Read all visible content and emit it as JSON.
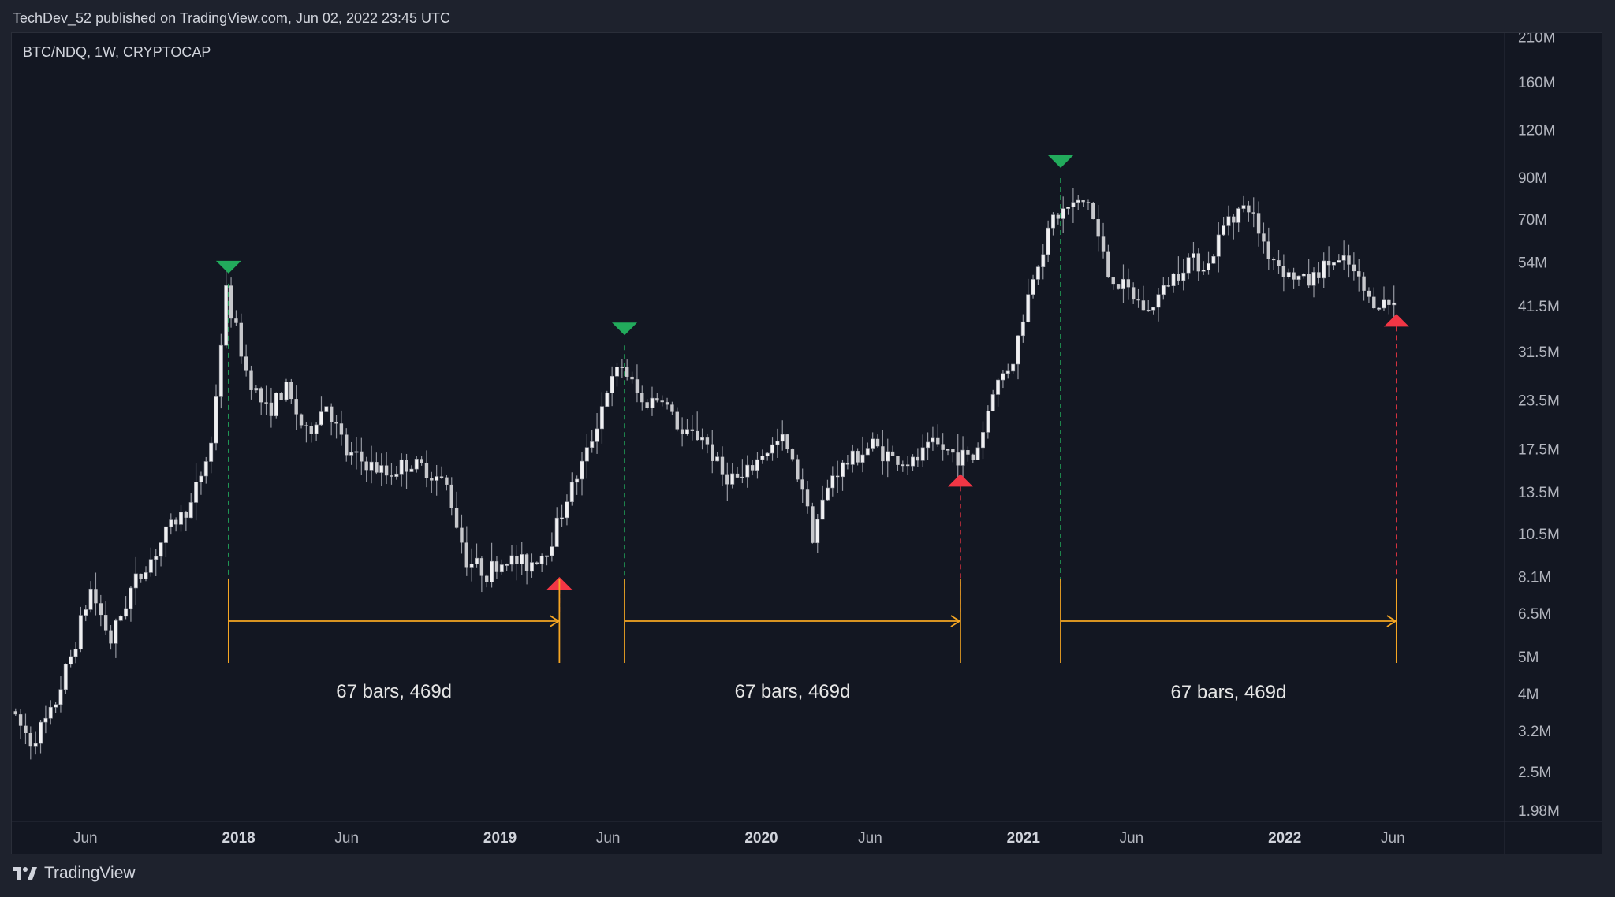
{
  "header": {
    "published_line": "TechDev_52 published on TradingView.com, Jun 02, 2022 23:45 UTC"
  },
  "footer": {
    "brand": "TradingView"
  },
  "colors": {
    "background": "#131722",
    "frame": "#1e222d",
    "candle": "#c7c8cc",
    "wick": "#9598a1",
    "peak_marker": "#22ab5c",
    "bottom_marker": "#f23645",
    "range_tool": "#f5a623",
    "text": "#d1d4dc",
    "axis_text": "#b2b5be"
  },
  "chart_data": {
    "type": "line",
    "symbol_label": "BTC/NDQ, 1W, CRYPTOCAP",
    "interval": "1W",
    "scale": "log",
    "x_start": "2017-02-20",
    "x_end": "2022-06-01",
    "y_range": [
      1980000,
      210000000
    ],
    "x_tick_labels": [
      "Jun",
      "2018",
      "Jun",
      "2019",
      "Jun",
      "2020",
      "Jun",
      "2021",
      "Jun",
      "2022",
      "Jun"
    ],
    "x_tick_dates": [
      "2017-06-01",
      "2018-01-01",
      "2018-06-01",
      "2019-01-01",
      "2019-06-01",
      "2020-01-01",
      "2020-06-01",
      "2021-01-01",
      "2021-06-01",
      "2022-01-01",
      "2022-06-01"
    ],
    "y_tick_labels": [
      "210M",
      "160M",
      "120M",
      "90M",
      "70M",
      "54M",
      "41.5M",
      "31.5M",
      "23.5M",
      "17.5M",
      "13.5M",
      "10.5M",
      "8.1M",
      "6.5M",
      "5M",
      "4M",
      "3.2M",
      "2.5M",
      "1.98M"
    ],
    "y_tick_values": [
      210000000,
      160000000,
      120000000,
      90000000,
      70000000,
      54000000,
      41500000,
      31500000,
      23500000,
      17500000,
      13500000,
      10500000,
      8100000,
      6500000,
      5000000,
      4000000,
      3200000,
      2500000,
      1980000
    ],
    "series": [
      {
        "x": [
          "2017-02-20",
          "2017-03-20",
          "2017-04-17",
          "2017-05-15",
          "2017-06-12",
          "2017-07-10",
          "2017-08-07",
          "2017-09-04",
          "2017-10-02",
          "2017-10-30",
          "2017-11-27",
          "2017-12-18",
          "2018-01-15",
          "2018-02-12",
          "2018-03-12",
          "2018-04-09",
          "2018-05-07",
          "2018-06-04",
          "2018-07-02",
          "2018-07-30",
          "2018-08-27",
          "2018-09-24",
          "2018-10-22",
          "2018-11-19",
          "2018-12-17",
          "2019-01-14",
          "2019-02-11",
          "2019-03-11",
          "2019-04-08",
          "2019-05-06",
          "2019-06-03",
          "2019-06-24",
          "2019-07-22",
          "2019-08-19",
          "2019-09-16",
          "2019-10-14",
          "2019-11-11",
          "2019-12-09",
          "2020-01-06",
          "2020-02-03",
          "2020-03-02",
          "2020-03-16",
          "2020-04-13",
          "2020-05-11",
          "2020-06-08",
          "2020-07-06",
          "2020-08-03",
          "2020-08-31",
          "2020-09-28",
          "2020-10-26",
          "2020-11-09",
          "2020-11-23",
          "2020-12-21",
          "2021-01-18",
          "2021-02-15",
          "2021-03-08",
          "2021-04-05",
          "2021-05-03",
          "2021-05-31",
          "2021-06-28",
          "2021-07-26",
          "2021-08-23",
          "2021-09-20",
          "2021-10-18",
          "2021-11-15",
          "2021-12-13",
          "2022-01-10",
          "2022-02-07",
          "2022-03-07",
          "2022-04-04",
          "2022-05-02",
          "2022-05-30"
        ],
        "values": [
          3600000,
          3000000,
          3500000,
          5000000,
          7500000,
          5500000,
          7500000,
          9000000,
          11000000,
          12500000,
          18000000,
          45000000,
          28000000,
          22000000,
          25000000,
          19000000,
          23000000,
          17000000,
          16000000,
          15000000,
          16000000,
          15500000,
          14000000,
          9000000,
          8300000,
          9000000,
          8700000,
          9500000,
          13000000,
          17000000,
          25000000,
          29000000,
          23000000,
          24000000,
          19000000,
          19000000,
          15000000,
          14500000,
          17000000,
          18500000,
          14000000,
          10500000,
          15000000,
          16500000,
          18000000,
          16500000,
          16000000,
          18000000,
          17000000,
          16500000,
          19500000,
          25000000,
          30000000,
          50000000,
          70000000,
          75000000,
          78000000,
          50000000,
          45000000,
          40000000,
          48000000,
          55000000,
          53000000,
          72000000,
          75000000,
          57000000,
          50000000,
          48000000,
          54000000,
          53000000,
          43000000,
          42000000
        ]
      }
    ],
    "markers": [
      {
        "type": "peak",
        "date": "2017-12-18",
        "value": 45000000
      },
      {
        "type": "bottom",
        "date": "2019-03-25",
        "value": 8600000
      },
      {
        "type": "peak",
        "date": "2019-06-24",
        "value": 31000000
      },
      {
        "type": "bottom",
        "date": "2020-10-05",
        "value": 16000000
      },
      {
        "type": "peak",
        "date": "2021-02-22",
        "value": 85000000
      },
      {
        "type": "bottom",
        "date": "2022-06-06",
        "value": 42000000
      }
    ],
    "range_measurements": [
      {
        "label": "67 bars, 469d",
        "start": "2017-12-18",
        "end": "2019-03-25"
      },
      {
        "label": "67 bars, 469d",
        "start": "2019-06-24",
        "end": "2020-10-05"
      },
      {
        "label": "67 bars, 469d",
        "start": "2021-02-22",
        "end": "2022-06-06"
      }
    ]
  }
}
